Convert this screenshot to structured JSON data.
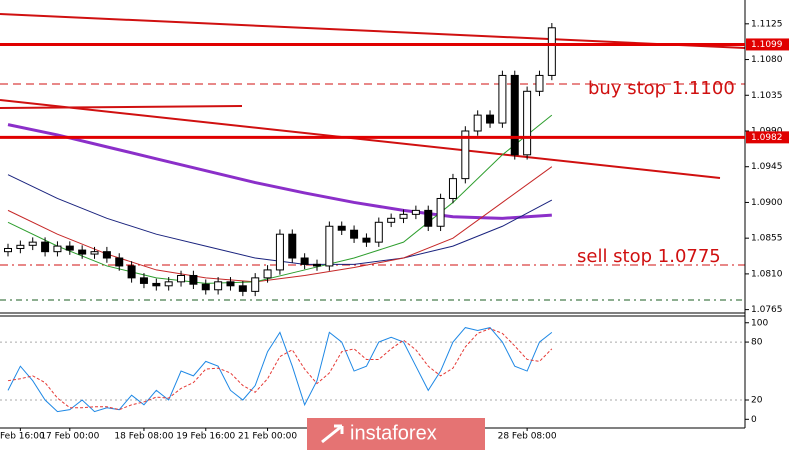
{
  "chart_data": {
    "type": "candlestick",
    "ylim": [
      1.0762,
      1.1155
    ],
    "yticks": [
      1.1125,
      {
        "value": 1.108,
        "label": "1.1080"
      },
      1.1035,
      {
        "value": 1.099,
        "label": "1.0990"
      },
      1.0945,
      {
        "value": 1.09,
        "label": "1.0900"
      },
      1.0855,
      {
        "value": 1.081,
        "label": "1.0810"
      },
      1.0765
    ],
    "levels": [
      1.1099,
      1.0982
    ],
    "level_color": "#e00000",
    "annotations": [
      "buy stop 1.1100",
      "sell stop 1.0775"
    ],
    "xticks": [
      {
        "value": 1,
        "label": "Feb 16:00"
      },
      {
        "value": 5,
        "label": "17 Feb 00:00"
      },
      {
        "value": 11,
        "label": "18 Feb 08:00"
      },
      {
        "value": 16,
        "label": "19 Feb 16:00"
      },
      {
        "value": 21,
        "label": "21 Feb 00:00"
      },
      {
        "value": 42,
        "label": "28 Feb 08:00"
      }
    ],
    "open": [
      1.0838,
      1.0842,
      1.0846,
      1.085,
      1.0838,
      1.0845,
      1.084,
      1.0835,
      1.0838,
      1.083,
      1.082,
      1.0805,
      1.0798,
      1.0795,
      1.08,
      1.0808,
      1.0797,
      1.079,
      1.08,
      1.0795,
      1.0788,
      1.0805,
      1.0815,
      1.086,
      1.083,
      1.0822,
      1.082,
      1.087,
      1.0865,
      1.0855,
      1.085,
      1.0875,
      1.088,
      1.0885,
      1.089,
      1.087,
      1.0905,
      1.093,
      1.099,
      1.101,
      1.1,
      1.106,
      1.096,
      1.104,
      1.106
    ],
    "high": [
      1.0848,
      1.0852,
      1.0856,
      1.0856,
      1.0851,
      1.0851,
      1.0846,
      1.0844,
      1.0844,
      1.0836,
      1.0826,
      1.0811,
      1.0804,
      1.0806,
      1.0814,
      1.0814,
      1.0803,
      1.0806,
      1.0806,
      1.0801,
      1.0811,
      1.0821,
      1.0866,
      1.0866,
      1.0836,
      1.0828,
      1.0876,
      1.0876,
      1.0871,
      1.0861,
      1.0881,
      1.0886,
      1.0891,
      1.0896,
      1.0896,
      1.0911,
      1.0936,
      1.0996,
      1.1016,
      1.1016,
      1.1066,
      1.1066,
      1.1046,
      1.1066,
      1.1126
    ],
    "low": [
      1.0832,
      1.0836,
      1.084,
      1.0832,
      1.0832,
      1.0834,
      1.0829,
      1.0829,
      1.0824,
      1.0814,
      1.0799,
      1.0792,
      1.0789,
      1.0789,
      1.0794,
      1.0791,
      1.0784,
      1.0784,
      1.0789,
      1.0782,
      1.0782,
      1.0799,
      1.0809,
      1.0824,
      1.0816,
      1.0814,
      1.0814,
      1.0859,
      1.0849,
      1.0844,
      1.0844,
      1.0869,
      1.0874,
      1.0879,
      1.0864,
      1.0864,
      1.0899,
      1.0924,
      1.0984,
      1.0994,
      1.0994,
      1.0954,
      1.0954,
      1.1034,
      1.1054
    ],
    "close": [
      1.0842,
      1.0846,
      1.085,
      1.0838,
      1.0845,
      1.084,
      1.0835,
      1.0838,
      1.083,
      1.082,
      1.0805,
      1.0798,
      1.0795,
      1.08,
      1.0808,
      1.0797,
      1.079,
      1.08,
      1.0795,
      1.0788,
      1.0805,
      1.0815,
      1.086,
      1.083,
      1.0822,
      1.082,
      1.087,
      1.0865,
      1.0855,
      1.085,
      1.0875,
      1.088,
      1.0885,
      1.089,
      1.087,
      1.0905,
      1.093,
      1.099,
      1.101,
      1.1,
      1.106,
      1.096,
      1.104,
      1.106,
      1.112
    ],
    "ma_x": [
      0,
      4,
      8,
      12,
      16,
      20,
      24,
      28,
      32,
      36,
      40,
      44
    ],
    "moving_averages": [
      {
        "color": "#8b2fc9",
        "values": [
          1.0998,
          1.0985,
          1.097,
          1.0955,
          1.094,
          1.0925,
          1.0912,
          1.09,
          1.089,
          1.0882,
          1.088,
          1.0884
        ]
      },
      {
        "color": "#1a237e",
        "values": [
          1.0935,
          1.0905,
          1.088,
          1.086,
          1.0845,
          1.083,
          1.0822,
          1.0822,
          1.083,
          1.0845,
          1.087,
          1.0903
        ]
      },
      {
        "color": "#c62828",
        "values": [
          1.089,
          1.086,
          1.0835,
          1.0815,
          1.0805,
          1.08,
          1.0808,
          1.0818,
          1.083,
          1.0855,
          1.09,
          1.0945
        ]
      },
      {
        "color": "#2e9e2e",
        "values": [
          1.0875,
          1.0845,
          1.082,
          1.0805,
          1.0798,
          1.08,
          1.0815,
          1.083,
          1.085,
          1.09,
          1.096,
          1.101
        ]
      }
    ],
    "oscillator": {
      "ylim": [
        -9,
        107
      ],
      "yticks": [
        100,
        80,
        20,
        0
      ],
      "series": [
        {
          "color": "#1e88e5",
          "dashed": false,
          "values": [
            30,
            55,
            40,
            20,
            8,
            10,
            20,
            8,
            12,
            10,
            25,
            15,
            30,
            20,
            50,
            45,
            60,
            55,
            30,
            20,
            35,
            70,
            90,
            55,
            15,
            40,
            90,
            80,
            50,
            55,
            80,
            85,
            80,
            55,
            30,
            50,
            80,
            95,
            92,
            95,
            80,
            55,
            50,
            80,
            90
          ]
        },
        {
          "color": "#e53935",
          "dashed": true,
          "values": [
            40,
            42,
            45,
            38,
            22,
            12,
            12,
            13,
            13,
            10,
            15,
            18,
            23,
            22,
            32,
            38,
            52,
            53,
            48,
            35,
            28,
            42,
            65,
            72,
            52,
            37,
            48,
            70,
            73,
            62,
            62,
            73,
            82,
            72,
            55,
            45,
            53,
            75,
            89,
            94,
            89,
            76,
            62,
            60,
            73
          ]
        }
      ]
    },
    "watermark": "instaforex"
  }
}
